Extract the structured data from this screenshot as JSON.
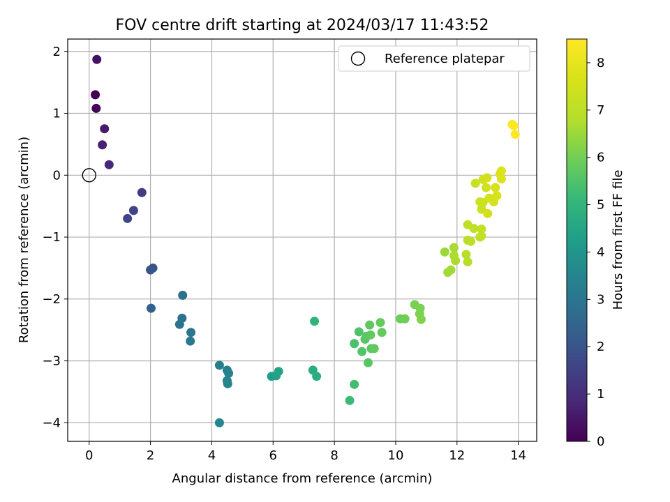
{
  "chart_data": {
    "type": "scatter",
    "title": "FOV centre drift starting at 2024/03/17 11:43:52",
    "xlabel": "Angular distance from reference (arcmin)",
    "ylabel": "Rotation from reference (arcmin)",
    "xlim": [
      -0.7,
      14.6
    ],
    "ylim": [
      -4.3,
      2.2
    ],
    "xticks": [
      0,
      2,
      4,
      6,
      8,
      10,
      12,
      14
    ],
    "yticks": [
      -4,
      -3,
      -2,
      -1,
      0,
      1,
      2
    ],
    "grid": true,
    "legend": {
      "placement": "top-right",
      "entries": [
        "Reference platepar"
      ]
    },
    "reference_point": {
      "x": 0,
      "y": 0
    },
    "colorbar": {
      "label": "Hours from first FF file",
      "range": [
        0,
        8.5
      ],
      "ticks": [
        0,
        1,
        2,
        3,
        4,
        5,
        6,
        7,
        8
      ],
      "colormap": "viridis"
    },
    "series": [
      {
        "points": [
          {
            "x": 0.2,
            "y": 1.3,
            "c": 0.0
          },
          {
            "x": 0.23,
            "y": 1.08,
            "c": 0.1
          },
          {
            "x": 0.25,
            "y": 1.87,
            "c": 0.35
          },
          {
            "x": 0.5,
            "y": 0.75,
            "c": 0.55
          },
          {
            "x": 0.43,
            "y": 0.49,
            "c": 0.7
          },
          {
            "x": 0.65,
            "y": 0.17,
            "c": 0.85
          },
          {
            "x": 1.72,
            "y": -0.28,
            "c": 1.35
          },
          {
            "x": 1.45,
            "y": -0.57,
            "c": 1.55
          },
          {
            "x": 1.25,
            "y": -0.7,
            "c": 1.6
          },
          {
            "x": 2.08,
            "y": -1.5,
            "c": 1.95
          },
          {
            "x": 2.0,
            "y": -1.53,
            "c": 2.05
          },
          {
            "x": 2.02,
            "y": -2.15,
            "c": 2.35
          },
          {
            "x": 3.05,
            "y": -1.94,
            "c": 2.75
          },
          {
            "x": 3.03,
            "y": -2.31,
            "c": 2.85
          },
          {
            "x": 2.95,
            "y": -2.41,
            "c": 2.9
          },
          {
            "x": 3.32,
            "y": -2.54,
            "c": 3.0
          },
          {
            "x": 3.3,
            "y": -2.68,
            "c": 3.05
          },
          {
            "x": 4.25,
            "y": -3.07,
            "c": 3.3
          },
          {
            "x": 4.5,
            "y": -3.15,
            "c": 3.35
          },
          {
            "x": 4.55,
            "y": -3.2,
            "c": 3.4
          },
          {
            "x": 4.5,
            "y": -3.32,
            "c": 3.45
          },
          {
            "x": 4.52,
            "y": -3.37,
            "c": 3.5
          },
          {
            "x": 4.25,
            "y": -4.0,
            "c": 3.55
          },
          {
            "x": 5.95,
            "y": -3.25,
            "c": 4.3
          },
          {
            "x": 6.1,
            "y": -3.24,
            "c": 4.35
          },
          {
            "x": 6.18,
            "y": -3.17,
            "c": 4.4
          },
          {
            "x": 7.3,
            "y": -3.15,
            "c": 4.7
          },
          {
            "x": 7.42,
            "y": -3.25,
            "c": 4.75
          },
          {
            "x": 7.35,
            "y": -2.36,
            "c": 4.95
          },
          {
            "x": 8.5,
            "y": -3.64,
            "c": 5.2
          },
          {
            "x": 8.65,
            "y": -3.38,
            "c": 5.3
          },
          {
            "x": 8.65,
            "y": -2.72,
            "c": 5.45
          },
          {
            "x": 8.8,
            "y": -2.53,
            "c": 5.5
          },
          {
            "x": 8.9,
            "y": -2.85,
            "c": 5.55
          },
          {
            "x": 9.0,
            "y": -2.65,
            "c": 5.6
          },
          {
            "x": 9.1,
            "y": -3.03,
            "c": 5.6
          },
          {
            "x": 9.05,
            "y": -2.6,
            "c": 5.65
          },
          {
            "x": 9.15,
            "y": -2.42,
            "c": 5.7
          },
          {
            "x": 9.2,
            "y": -2.8,
            "c": 5.7
          },
          {
            "x": 9.3,
            "y": -2.8,
            "c": 5.75
          },
          {
            "x": 9.18,
            "y": -2.58,
            "c": 5.75
          },
          {
            "x": 9.5,
            "y": -2.38,
            "c": 5.8
          },
          {
            "x": 9.55,
            "y": -2.54,
            "c": 5.8
          },
          {
            "x": 10.15,
            "y": -2.32,
            "c": 5.9
          },
          {
            "x": 10.3,
            "y": -2.32,
            "c": 5.95
          },
          {
            "x": 10.62,
            "y": -2.09,
            "c": 6.05
          },
          {
            "x": 10.8,
            "y": -2.15,
            "c": 6.1
          },
          {
            "x": 10.78,
            "y": -2.24,
            "c": 6.1
          },
          {
            "x": 10.83,
            "y": -2.33,
            "c": 6.15
          },
          {
            "x": 11.6,
            "y": -1.24,
            "c": 6.5
          },
          {
            "x": 11.7,
            "y": -1.57,
            "c": 6.55
          },
          {
            "x": 11.8,
            "y": -1.53,
            "c": 6.6
          },
          {
            "x": 11.9,
            "y": -1.17,
            "c": 6.65
          },
          {
            "x": 11.9,
            "y": -1.3,
            "c": 6.7
          },
          {
            "x": 11.95,
            "y": -1.38,
            "c": 6.7
          },
          {
            "x": 12.3,
            "y": -1.28,
            "c": 6.85
          },
          {
            "x": 12.35,
            "y": -1.4,
            "c": 6.9
          },
          {
            "x": 12.35,
            "y": -1.05,
            "c": 6.95
          },
          {
            "x": 12.45,
            "y": -1.07,
            "c": 7.0
          },
          {
            "x": 12.35,
            "y": -0.8,
            "c": 7.0
          },
          {
            "x": 12.55,
            "y": -0.86,
            "c": 7.05
          },
          {
            "x": 12.75,
            "y": -1.0,
            "c": 7.1
          },
          {
            "x": 12.8,
            "y": -0.98,
            "c": 7.1
          },
          {
            "x": 12.8,
            "y": -0.87,
            "c": 7.15
          },
          {
            "x": 12.6,
            "y": -0.13,
            "c": 7.25
          },
          {
            "x": 12.75,
            "y": -0.43,
            "c": 7.3
          },
          {
            "x": 12.8,
            "y": -0.55,
            "c": 7.3
          },
          {
            "x": 12.85,
            "y": -0.44,
            "c": 7.35
          },
          {
            "x": 12.85,
            "y": -0.07,
            "c": 7.4
          },
          {
            "x": 12.95,
            "y": -0.2,
            "c": 7.45
          },
          {
            "x": 12.98,
            "y": -0.04,
            "c": 7.5
          },
          {
            "x": 13.0,
            "y": -0.62,
            "c": 7.5
          },
          {
            "x": 13.05,
            "y": -0.37,
            "c": 7.55
          },
          {
            "x": 13.2,
            "y": -0.43,
            "c": 7.55
          },
          {
            "x": 13.25,
            "y": -0.2,
            "c": 7.6
          },
          {
            "x": 13.3,
            "y": -0.33,
            "c": 7.65
          },
          {
            "x": 13.4,
            "y": 0.02,
            "c": 7.7
          },
          {
            "x": 13.45,
            "y": 0.07,
            "c": 7.75
          },
          {
            "x": 13.45,
            "y": -0.06,
            "c": 7.75
          },
          {
            "x": 13.8,
            "y": 0.82,
            "c": 8.4
          },
          {
            "x": 13.85,
            "y": 0.8,
            "c": 8.45
          },
          {
            "x": 13.9,
            "y": 0.66,
            "c": 8.5
          }
        ]
      }
    ]
  }
}
